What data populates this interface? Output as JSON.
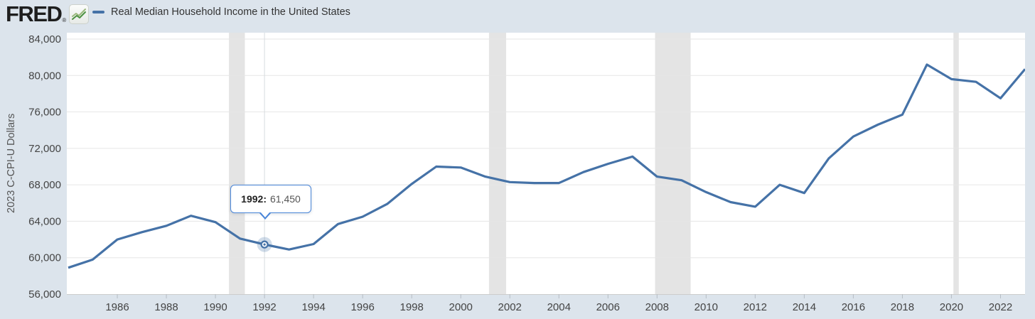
{
  "header": {
    "logo": "FRED",
    "registered": "®"
  },
  "legend": {
    "label": "Real Median Household Income in the United States"
  },
  "tooltip": {
    "year_label": "1992:",
    "value": "61,450"
  },
  "colors": {
    "background": "#dce4ec",
    "plot_background": "#ffffff",
    "line": "#4572a7",
    "gridline": "#e6e6e6",
    "recession_band": "#e4e4e4",
    "crosshair": "#d7dbdf",
    "axis_line": "#cccccc",
    "tick_mark": "#b6bdc4",
    "axis_text": "#444444",
    "tooltip_border": "#4a86d8",
    "logo_green_dark": "#4c9141",
    "logo_green_light": "#9ab87c"
  },
  "chart_data": {
    "type": "line",
    "title": "Real Median Household Income in the United States",
    "xlabel": "",
    "ylabel": "2023 C-CPI-U Dollars",
    "legend_position": "top-left",
    "grid": "horizontal",
    "xlim": [
      1984,
      2023
    ],
    "ylim": [
      56000,
      84700
    ],
    "x": [
      1984,
      1985,
      1986,
      1987,
      1988,
      1989,
      1990,
      1991,
      1992,
      1993,
      1994,
      1995,
      1996,
      1997,
      1998,
      1999,
      2000,
      2001,
      2002,
      2003,
      2004,
      2005,
      2006,
      2007,
      2008,
      2009,
      2010,
      2011,
      2012,
      2013,
      2014,
      2015,
      2016,
      2017,
      2018,
      2019,
      2020,
      2021,
      2022,
      2023
    ],
    "values": [
      58900,
      59800,
      62000,
      62800,
      63500,
      64600,
      63900,
      62100,
      61450,
      60900,
      61500,
      63700,
      64500,
      65900,
      68100,
      70000,
      69900,
      68900,
      68300,
      68200,
      68200,
      69400,
      70300,
      71100,
      68900,
      68500,
      67200,
      66100,
      65600,
      68000,
      67100,
      70900,
      73300,
      74600,
      75700,
      81200,
      79600,
      79300,
      77500,
      80700
    ],
    "y_ticks": [
      56000,
      60000,
      64000,
      68000,
      72000,
      76000,
      80000,
      84000
    ],
    "y_tick_labels": [
      "56,000",
      "60,000",
      "64,000",
      "68,000",
      "72,000",
      "76,000",
      "80,000",
      "84,000"
    ],
    "x_ticks": [
      1986,
      1988,
      1990,
      1992,
      1994,
      1996,
      1998,
      2000,
      2002,
      2004,
      2006,
      2008,
      2010,
      2012,
      2014,
      2016,
      2018,
      2020,
      2022
    ],
    "x_tick_labels": [
      "1986",
      "1988",
      "1990",
      "1992",
      "1994",
      "1996",
      "1998",
      "2000",
      "2002",
      "2004",
      "2006",
      "2008",
      "2010",
      "2012",
      "2014",
      "2016",
      "2018",
      "2020",
      "2022"
    ],
    "recession_bands": [
      [
        1990.55,
        1991.2
      ],
      [
        2001.15,
        2001.85
      ],
      [
        2007.92,
        2009.37
      ],
      [
        2020.08,
        2020.3
      ]
    ],
    "hover_point": {
      "x": 1992,
      "y": 61450
    }
  }
}
